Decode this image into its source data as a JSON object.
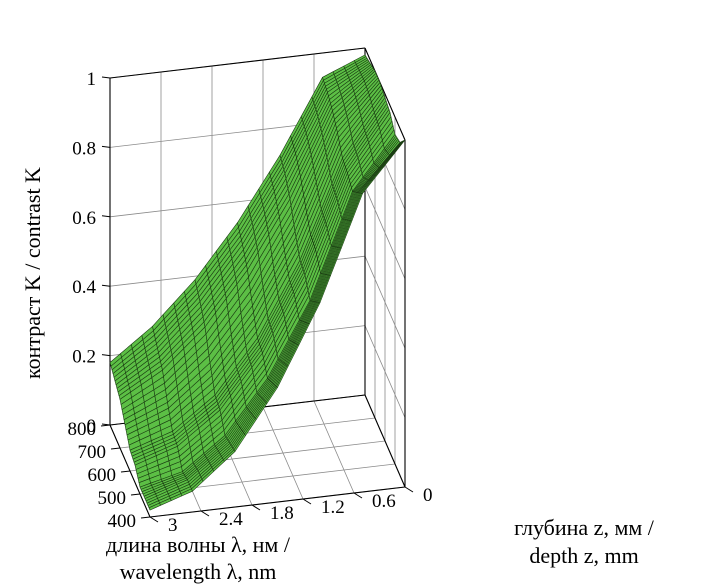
{
  "chart_data": {
    "type": "surface",
    "title": "",
    "zlabel": "контраст K / contrast K",
    "xlabel_line1": "длина волны λ, нм /",
    "xlabel_line2": "wavelength λ, nm",
    "ylabel_line1": "глубина z, мм /",
    "ylabel_line2": "depth z, mm",
    "wavelength_ticks": [
      "800",
      "700",
      "600",
      "500",
      "400"
    ],
    "depth_ticks": [
      "0",
      "0.6",
      "1.2",
      "1.8",
      "2.4",
      "3"
    ],
    "contrast_ticks": [
      "0",
      "0.2",
      "0.4",
      "0.6",
      "0.8",
      "1"
    ],
    "wavelength_range": [
      400,
      800
    ],
    "depth_range": [
      0,
      3
    ],
    "contrast_range": [
      0,
      1
    ],
    "grid": true,
    "colors": {
      "surface": "#5cbf45",
      "mesh": "#1a3d12"
    },
    "wavelength_nm": [
      400,
      450,
      500,
      550,
      600,
      650,
      700,
      750,
      800
    ],
    "depth_mm": [
      0,
      0.5,
      1.0,
      1.5,
      2.0,
      2.5,
      3.0
    ],
    "contrast": [
      [
        1.0,
        0.96,
        0.95,
        0.98,
        0.99,
        1.0,
        1.0,
        0.99,
        0.98
      ],
      [
        0.86,
        0.83,
        0.8,
        0.82,
        0.83,
        0.87,
        0.9,
        0.92,
        0.93
      ],
      [
        0.56,
        0.53,
        0.5,
        0.54,
        0.55,
        0.6,
        0.66,
        0.7,
        0.72
      ],
      [
        0.33,
        0.31,
        0.29,
        0.33,
        0.34,
        0.4,
        0.47,
        0.51,
        0.54
      ],
      [
        0.16,
        0.15,
        0.14,
        0.18,
        0.19,
        0.25,
        0.32,
        0.36,
        0.39
      ],
      [
        0.06,
        0.06,
        0.05,
        0.09,
        0.1,
        0.15,
        0.21,
        0.24,
        0.27
      ],
      [
        0.02,
        0.02,
        0.02,
        0.05,
        0.06,
        0.1,
        0.14,
        0.16,
        0.18
      ]
    ]
  }
}
